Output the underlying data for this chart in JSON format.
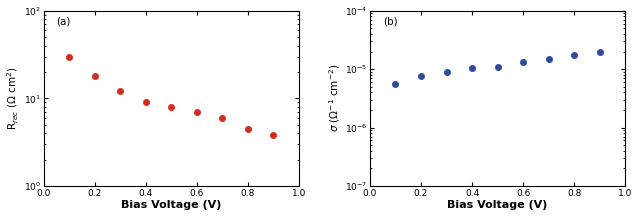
{
  "panel_a": {
    "x": [
      0.1,
      0.2,
      0.3,
      0.4,
      0.5,
      0.6,
      0.7,
      0.8,
      0.9
    ],
    "y": [
      30,
      18,
      12,
      9,
      8,
      7,
      6,
      4.5,
      3.8
    ],
    "color": "#d42b20",
    "marker": "o",
    "markersize": 4.5,
    "ylabel": "R$_{rec}$ ($\\Omega$ cm$^{2}$)",
    "xlabel": "Bias Voltage (V)",
    "ylim": [
      1,
      100
    ],
    "xlim": [
      0.0,
      1.0
    ],
    "yticks_major": [
      1,
      10,
      100
    ],
    "xticks": [
      0.0,
      0.2,
      0.4,
      0.6,
      0.8,
      1.0
    ],
    "label": "(a)"
  },
  "panel_b": {
    "x": [
      0.1,
      0.2,
      0.3,
      0.4,
      0.5,
      0.6,
      0.7,
      0.8,
      0.9
    ],
    "y": [
      5.5e-06,
      7.5e-06,
      9e-06,
      1.05e-05,
      1.1e-05,
      1.3e-05,
      1.5e-05,
      1.75e-05,
      2e-05
    ],
    "color": "#2e4aa0",
    "marker": "o",
    "markersize": 4.5,
    "ylabel": "$\\sigma$ ($\\Omega^{-1}$ cm$^{-2}$)",
    "xlabel": "Bias Voltage (V)",
    "ylim": [
      1e-07,
      0.0001
    ],
    "xlim": [
      0.0,
      1.0
    ],
    "xticks": [
      0.0,
      0.2,
      0.4,
      0.6,
      0.8,
      1.0
    ],
    "label": "(b)"
  },
  "fig_width": 6.38,
  "fig_height": 2.16,
  "dpi": 100,
  "tick_fontsize": 6.5,
  "label_fontsize": 7.5,
  "xlabel_fontsize": 8,
  "annot_fontsize": 7.5
}
